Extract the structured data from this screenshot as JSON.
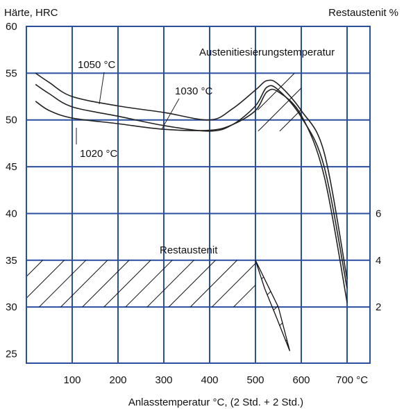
{
  "chart_data": {
    "type": "line",
    "title": "",
    "ylabel": "Härte, HRC",
    "y2label": "Restaustenit %",
    "xlabel": "Anlasstemperatur °C, (2 Std. + 2 Std.)",
    "x_unit_suffix": "700 °C",
    "xlim": [
      0,
      750
    ],
    "ylim": [
      24,
      60
    ],
    "x_ticks": [
      100,
      200,
      300,
      400,
      500,
      600,
      700
    ],
    "y_ticks": [
      25,
      30,
      35,
      40,
      45,
      50,
      55,
      60
    ],
    "y2_ticks": [
      {
        "label": "6",
        "at_hrc": 40
      },
      {
        "label": "4",
        "at_hrc": 35
      },
      {
        "label": "2",
        "at_hrc": 30
      }
    ],
    "grid": true,
    "annotations": {
      "austenitizing_title": "Austenitiesierungstemperatur",
      "retained_austenite": "Restaustenit"
    },
    "series": [
      {
        "name": "1050 °C",
        "color": "#222222",
        "x": [
          20,
          50,
          100,
          200,
          300,
          400,
          450,
          500,
          525,
          550,
          600,
          650,
          700
        ],
        "y": [
          55,
          54,
          52.5,
          51.5,
          50.8,
          50,
          51.2,
          53.2,
          54.2,
          53.8,
          51,
          46.5,
          33
        ]
      },
      {
        "name": "1030 °C",
        "color": "#222222",
        "x": [
          20,
          50,
          100,
          200,
          300,
          400,
          450,
          500,
          525,
          550,
          600,
          650,
          700
        ],
        "y": [
          53.8,
          52.8,
          51.4,
          50.4,
          49.4,
          48.8,
          49.5,
          51.5,
          53.5,
          53.2,
          50.3,
          45,
          32
        ]
      },
      {
        "name": "1020 °C",
        "color": "#222222",
        "x": [
          20,
          50,
          100,
          200,
          300,
          400,
          450,
          500,
          525,
          550,
          600,
          650,
          700
        ],
        "y": [
          52,
          51,
          50.2,
          49.6,
          49,
          48.9,
          49.5,
          51,
          53,
          53,
          50.5,
          44,
          30.5
        ]
      }
    ],
    "hatched_regions": [
      {
        "name": "retained-austenite-band",
        "x": [
          0,
          500,
          500,
          0
        ],
        "y": [
          30,
          30,
          35,
          35
        ]
      },
      {
        "name": "retained-austenite-tail",
        "x": [
          500,
          520,
          545,
          575,
          550,
          500
        ],
        "y": [
          35,
          32,
          29,
          25.3,
          30,
          35
        ]
      },
      {
        "name": "austenite-transform-zone",
        "x": [
          505,
          540,
          600,
          600,
          505
        ],
        "y": [
          53.2,
          55,
          55,
          48.8,
          48.8
        ]
      }
    ]
  }
}
